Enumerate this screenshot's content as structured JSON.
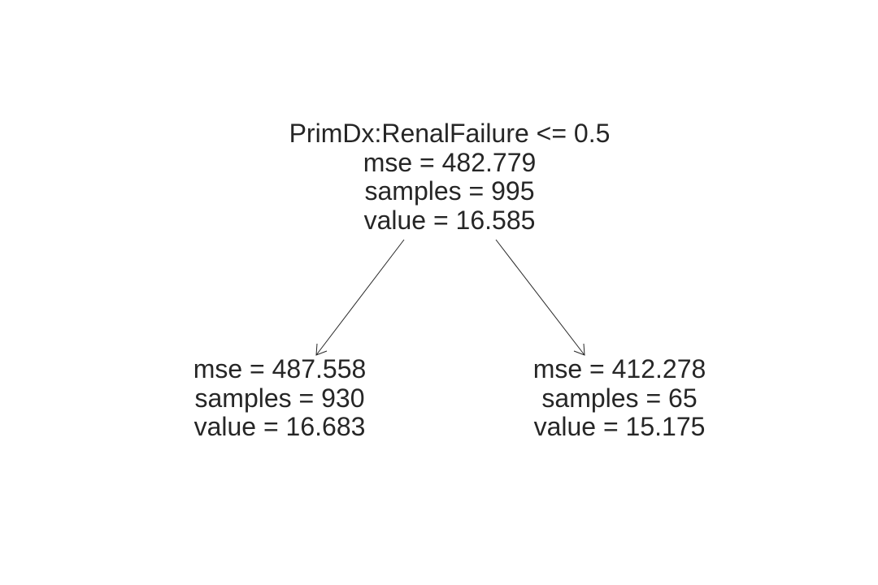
{
  "tree": {
    "root": {
      "split": "PrimDx:RenalFailure <= 0.5",
      "mse": "mse = 482.779",
      "samples": "samples = 995",
      "value": "value = 16.585"
    },
    "left": {
      "mse": "mse = 487.558",
      "samples": "samples = 930",
      "value": "value = 16.683"
    },
    "right": {
      "mse": "mse = 412.278",
      "samples": "samples = 65",
      "value": "value = 15.175"
    }
  },
  "colors": {
    "text": "#262626",
    "edge": "#262626",
    "background": "#ffffff"
  }
}
